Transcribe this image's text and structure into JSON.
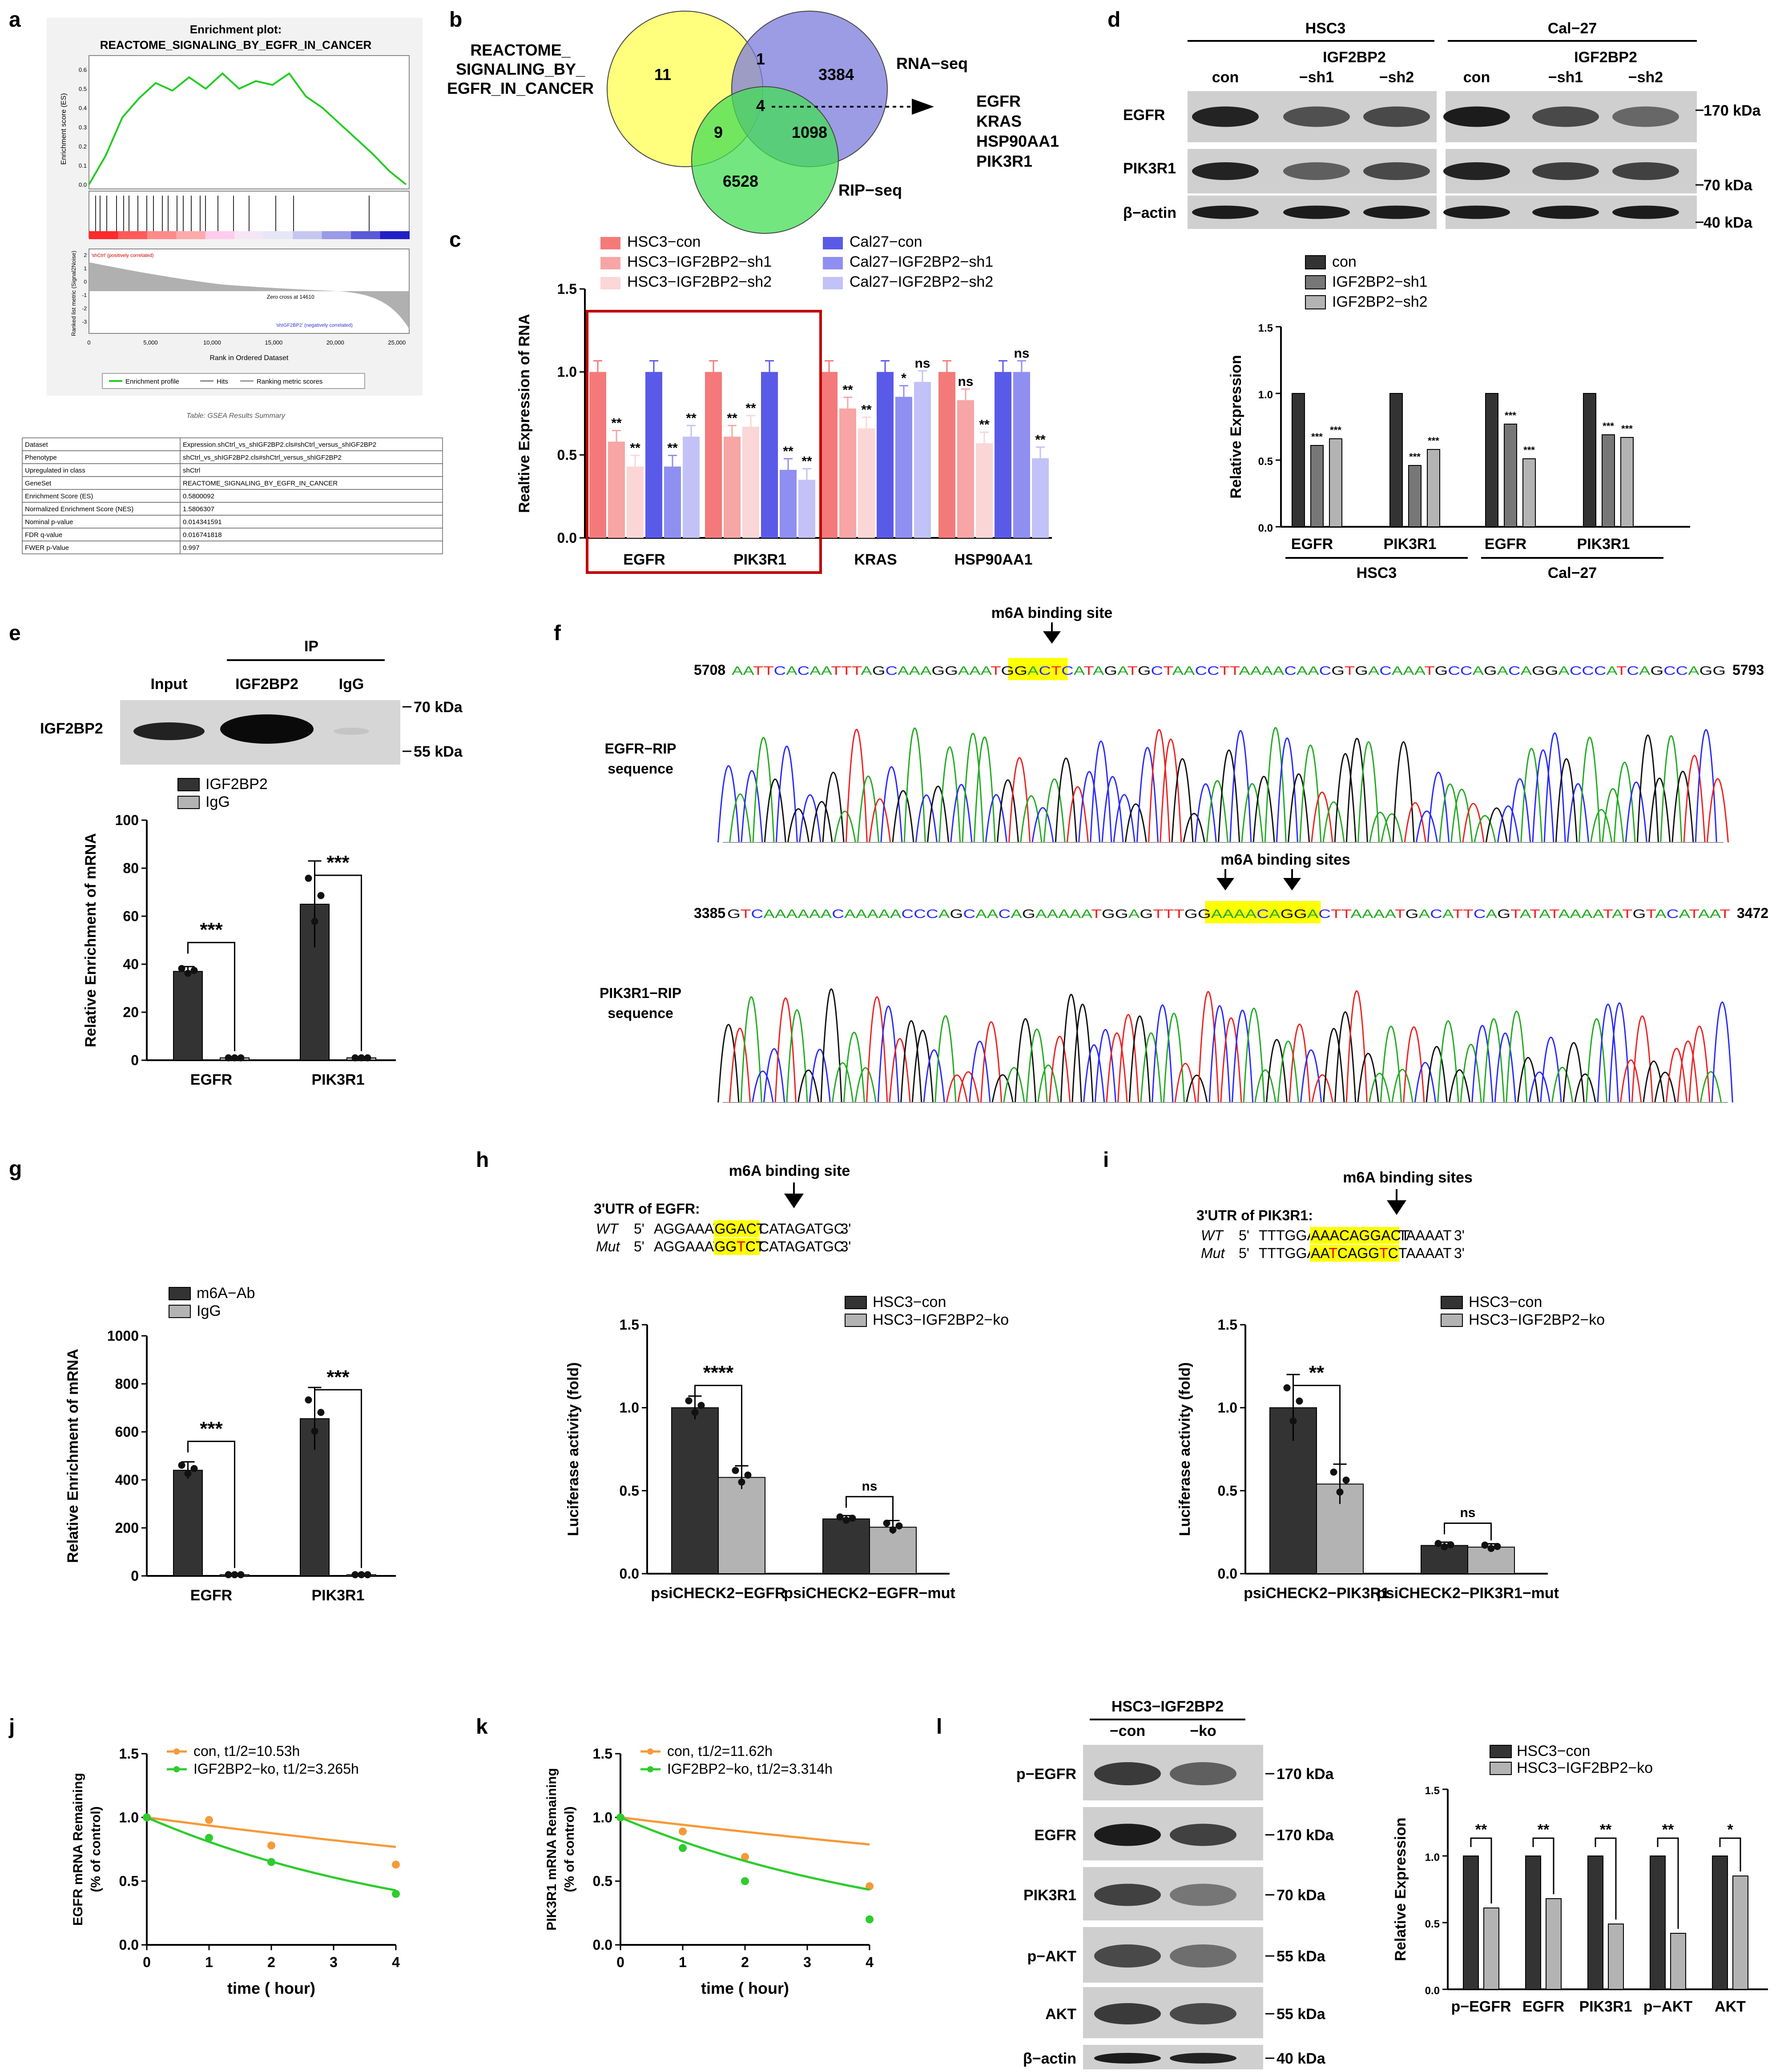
{
  "panels": {
    "a": "a",
    "b": "b",
    "c": "c",
    "d": "d",
    "e": "e",
    "f": "f",
    "g": "g",
    "h": "h",
    "i": "i",
    "j": "j",
    "k": "k",
    "l": "l"
  },
  "colors": {
    "hsc3_con": "#f47a7a",
    "hsc3_sh1": "#f7a5a5",
    "hsc3_sh2": "#fbd6d6",
    "cal_con": "#5a5ae8",
    "cal_sh1": "#8f8ff2",
    "cal_sh2": "#c2c2f8",
    "dark": "#333333",
    "mid": "#777777",
    "light": "#b3b3b3",
    "green": "#2ecc2e",
    "orange": "#f59a3a"
  },
  "panel_a": {
    "title1": "Enrichment plot:",
    "title2": "REACTOME_SIGNALING_BY_EGFR_IN_CANCER",
    "ylabel_top": "Enrichment score (ES)",
    "yticks": [
      "0.6",
      "0.5",
      "0.4",
      "0.3",
      "0.2",
      "0.1",
      "0.0"
    ],
    "es_curve": [
      0,
      0.15,
      0.35,
      0.45,
      0.53,
      0.49,
      0.56,
      0.5,
      0.58,
      0.5,
      0.54,
      0.52,
      0.58,
      0.46,
      0.4,
      0.32,
      0.24,
      0.16,
      0.07,
      0.0
    ],
    "pos_label": "'shCtrl' (positively correlated)",
    "neg_label": "'shIGF2BP2' (negatively correlated)",
    "zero_cross": "Zero cross at 14610",
    "ylabel_bottom": "Ranked list metric (Signal2Noise)",
    "metric_ticks": [
      "2",
      "1",
      "0",
      "-1",
      "-2",
      "-3"
    ],
    "xticks": [
      "0",
      "5,000",
      "10,000",
      "15,000",
      "20,000",
      "25,000"
    ],
    "xlabel": "Rank in Ordered Dataset",
    "legend": [
      "Enrichment profile",
      "Hits",
      "Ranking metric scores"
    ],
    "table_title": "Table: GSEA Results Summary",
    "table": [
      [
        "Dataset",
        "Expression.shCtrl_vs_shIGF2BP2.cls#shCtrl_versus_shIGF2BP2"
      ],
      [
        "Phenotype",
        "shCtrl_vs_shIGF2BP2.cls#shCtrl_versus_shIGF2BP2"
      ],
      [
        "Upregulated in class",
        "shCtrl"
      ],
      [
        "GeneSet",
        "REACTOME_SIGNALING_BY_EGFR_IN_CANCER"
      ],
      [
        "Enrichment Score (ES)",
        "0.5800092"
      ],
      [
        "Normalized Enrichment Score (NES)",
        "1.5806307"
      ],
      [
        "Nominal p-value",
        "0.014341591"
      ],
      [
        "FDR q-value",
        "0.016741818"
      ],
      [
        "FWER p-Value",
        "0.997"
      ]
    ]
  },
  "panel_b": {
    "set1_line1": "REACTOME_",
    "set1_line2": "SIGNALING_BY_",
    "set1_line3": "EGFR_IN_CANCER",
    "set2": "RNA−seq",
    "set3": "RIP−seq",
    "counts": {
      "only1": "11",
      "only2": "3384",
      "only3": "6528",
      "s12": "1",
      "s13": "9",
      "s23": "1098",
      "all": "4"
    },
    "genes": [
      "EGFR",
      "KRAS",
      "HSP90AA1",
      "PIK3R1"
    ]
  },
  "chart_data": [
    {
      "panel": "c",
      "type": "bar",
      "ylabel": "Realtive Expression of RNA",
      "ylim": [
        0,
        1.5
      ],
      "yticks": [
        "0.0",
        "0.5",
        "1.0",
        "1.5"
      ],
      "categories": [
        "EGFR",
        "PIK3R1",
        "KRAS",
        "HSP90AA1"
      ],
      "series": [
        {
          "name": "HSC3−con",
          "values": [
            1.0,
            1.0,
            1.0,
            1.0
          ]
        },
        {
          "name": "HSC3−IGF2BP2−sh1",
          "values": [
            0.58,
            0.61,
            0.78,
            0.83
          ]
        },
        {
          "name": "HSC3−IGF2BP2−sh2",
          "values": [
            0.43,
            0.67,
            0.66,
            0.57
          ]
        },
        {
          "name": "Cal27−con",
          "values": [
            1.0,
            1.0,
            1.0,
            1.0
          ]
        },
        {
          "name": "Cal27−IGF2BP2−sh1",
          "values": [
            0.43,
            0.41,
            0.85,
            1.0
          ]
        },
        {
          "name": "Cal27−IGF2BP2−sh2",
          "values": [
            0.61,
            0.35,
            0.94,
            0.48
          ]
        }
      ],
      "sig": [
        [
          "**",
          "**",
          "**",
          "**"
        ],
        [
          "**",
          "**",
          "**",
          "**"
        ],
        [
          "**",
          "**",
          "*",
          "ns"
        ],
        [
          "ns",
          "**",
          "ns",
          "**"
        ]
      ]
    },
    {
      "panel": "d",
      "type": "bar",
      "ylabel": "Relative Expression",
      "ylim": [
        0,
        1.5
      ],
      "yticks": [
        "0.0",
        "0.5",
        "1.0",
        "1.5"
      ],
      "categories": [
        "EGFR",
        "PIK3R1",
        "EGFR",
        "PIK3R1"
      ],
      "groups": [
        "HSC3",
        "Cal−27"
      ],
      "series": [
        {
          "name": "con",
          "values": [
            1.0,
            1.0,
            1.0,
            1.0
          ]
        },
        {
          "name": "IGF2BP2−sh1",
          "values": [
            0.61,
            0.46,
            0.77,
            0.69
          ]
        },
        {
          "name": "IGF2BP2−sh2",
          "values": [
            0.66,
            0.58,
            0.51,
            0.67
          ]
        }
      ],
      "sig": "***"
    },
    {
      "panel": "e",
      "type": "bar",
      "ylabel": "Relative Enrichment of mRNA",
      "ylim": [
        0,
        100
      ],
      "yticks": [
        "0",
        "20",
        "40",
        "60",
        "80",
        "100"
      ],
      "categories": [
        "EGFR",
        "PIK3R1"
      ],
      "series": [
        {
          "name": "IGF2BP2",
          "values": [
            37,
            65
          ]
        },
        {
          "name": "IgG",
          "values": [
            1,
            1
          ]
        }
      ],
      "sig": [
        "***",
        "***"
      ]
    },
    {
      "panel": "g",
      "type": "bar",
      "ylabel": "Relative Enrichment of mRNA",
      "ylim": [
        0,
        1000
      ],
      "yticks": [
        "0",
        "200",
        "400",
        "600",
        "800",
        "1000"
      ],
      "categories": [
        "EGFR",
        "PIK3R1"
      ],
      "series": [
        {
          "name": "m6A−Ab",
          "values": [
            440,
            655
          ]
        },
        {
          "name": "IgG",
          "values": [
            5,
            5
          ]
        }
      ],
      "sig": [
        "***",
        "***"
      ]
    },
    {
      "panel": "h",
      "type": "bar",
      "ylabel": "Luciferase activity (fold)",
      "ylim": [
        0,
        1.5
      ],
      "yticks": [
        "0.0",
        "0.5",
        "1.0",
        "1.5"
      ],
      "categories": [
        "psiCHECK2−EGFR",
        "psiCHECK2−EGFR−mut"
      ],
      "series": [
        {
          "name": "HSC3−con",
          "values": [
            1.0,
            0.33
          ]
        },
        {
          "name": "HSC3−IGF2BP2−ko",
          "values": [
            0.58,
            0.28
          ]
        }
      ],
      "sig": [
        "****",
        "ns"
      ]
    },
    {
      "panel": "i",
      "type": "bar",
      "ylabel": "Luciferase activity (fold)",
      "ylim": [
        0,
        1.5
      ],
      "yticks": [
        "0.0",
        "0.5",
        "1.0",
        "1.5"
      ],
      "categories": [
        "psiCHECK2−PIK3R1",
        "psiCHECK2−PIK3R1−mut"
      ],
      "series": [
        {
          "name": "HSC3−con",
          "values": [
            1.0,
            0.17
          ]
        },
        {
          "name": "HSC3−IGF2BP2−ko",
          "values": [
            0.54,
            0.16
          ]
        }
      ],
      "sig": [
        "**",
        "ns"
      ]
    },
    {
      "panel": "j",
      "type": "line",
      "ylabel": "EGFR mRNA Remaining (% of control)",
      "xlabel": "time ( hour)",
      "xlim": [
        0,
        4
      ],
      "ylim": [
        0,
        1.5
      ],
      "xticks": [
        "0",
        "1",
        "2",
        "3",
        "4"
      ],
      "yticks": [
        "0.0",
        "0.5",
        "1.0",
        "1.5"
      ],
      "series": [
        {
          "name": "con, t1/2=10.53h",
          "x": [
            0,
            1,
            2,
            4
          ],
          "y": [
            1.0,
            0.98,
            0.78,
            0.63
          ],
          "halflife": 10.53
        },
        {
          "name": "IGF2BP2−ko, t1/2=3.265h",
          "x": [
            0,
            1,
            2,
            4
          ],
          "y": [
            1.0,
            0.84,
            0.65,
            0.4
          ],
          "halflife": 3.265
        }
      ]
    },
    {
      "panel": "k",
      "type": "line",
      "ylabel": "PIK3R1 mRNA Remaining (% of control)",
      "xlabel": "time ( hour)",
      "xlim": [
        0,
        4
      ],
      "ylim": [
        0,
        1.5
      ],
      "xticks": [
        "0",
        "1",
        "2",
        "3",
        "4"
      ],
      "yticks": [
        "0.0",
        "0.5",
        "1.0",
        "1.5"
      ],
      "series": [
        {
          "name": "con, t1/2=11.62h",
          "x": [
            0,
            1,
            2,
            4
          ],
          "y": [
            1.0,
            0.89,
            0.69,
            0.46
          ],
          "halflife": 11.62
        },
        {
          "name": "IGF2BP2−ko, t1/2=3.314h",
          "x": [
            0,
            1,
            2,
            4
          ],
          "y": [
            1.0,
            0.76,
            0.5,
            0.2
          ],
          "halflife": 3.314
        }
      ]
    },
    {
      "panel": "l",
      "type": "bar",
      "ylabel": "Relative Expression",
      "ylim": [
        0,
        1.5
      ],
      "yticks": [
        "0.0",
        "0.5",
        "1.0",
        "1.5"
      ],
      "categories": [
        "p−EGFR",
        "EGFR",
        "PIK3R1",
        "p−AKT",
        "AKT"
      ],
      "series": [
        {
          "name": "HSC3−con",
          "values": [
            1.0,
            1.0,
            1.0,
            1.0,
            1.0
          ]
        },
        {
          "name": "HSC3−IGF2BP2−ko",
          "values": [
            0.61,
            0.68,
            0.49,
            0.42,
            0.85
          ]
        }
      ],
      "sig": [
        "**",
        "**",
        "**",
        "**",
        "*"
      ]
    }
  ],
  "panel_d_blot": {
    "cell1": "HSC3",
    "cell2": "Cal−27",
    "lanes": [
      "con",
      "IGF2BP2",
      "−sh1",
      "−sh2"
    ],
    "rows": [
      "EGFR",
      "PIK3R1",
      "β−actin"
    ],
    "kda": [
      "170 kDa",
      "70 kDa",
      "40 kDa"
    ]
  },
  "panel_e_blot": {
    "ip": "IP",
    "lanes": [
      "Input",
      "IGF2BP2",
      "IgG"
    ],
    "row": "IGF2BP2",
    "kda": [
      "70 kDa",
      "55 kDa"
    ]
  },
  "panel_f": {
    "site1": "m6A binding site",
    "site2": "m6A binding sites",
    "seq1_start": "5708",
    "seq1_end": "5793",
    "seq1": "AATTCACAATTTAGCAAAGGAAATGGACTCATAGATGCTAACCTTAAAACAACGTGACAAATGCCAGACAGGACCCATCAGCCAGG",
    "seq2_start": "3385",
    "seq2_end": "3472",
    "seq2": "GTCAAAAAACAAAAACCCAGCAACAGAAAAATGGAGTTTGGAAAACAGGACTTAAAATGACATTCAGTATATAAAATATGTACATAAT",
    "label1a": "EGFR−RIP",
    "label1b": "sequence",
    "label2a": "PIK3R1−RIP",
    "label2b": "sequence"
  },
  "panel_h_seq": {
    "site": "m6A binding site",
    "utr": "3'UTR of EGFR:",
    "wt": "WT",
    "mut": "Mut",
    "five": "5'",
    "three": "3'",
    "wt_pre": "AGGAAAT",
    "wt_core": "GGACT",
    "wt_post": "CATAGATGC",
    "mut_pre": "AGGAAAT",
    "mut_core": "GGTCT",
    "mut_post": "CATAGATGC"
  },
  "panel_i_seq": {
    "site": "m6A binding sites",
    "utr": "3'UTR of PIK3R1:",
    "wt": "WT",
    "mut": "Mut",
    "five": "5'",
    "three": "3'",
    "wt_pre": "TTTGGA",
    "wt_core": "AAACAGGACT",
    "wt_post": "TAAAAT",
    "mut_pre": "TTTGGA",
    "mut_core": "AATCAGGTCT",
    "mut_post": "TAAAAT"
  },
  "panel_l_blot": {
    "title1": "HSC3−IGF2BP2",
    "lanes": [
      "−con",
      "−ko"
    ],
    "rows": [
      "p−EGFR",
      "EGFR",
      "PIK3R1",
      "p−AKT",
      "AKT",
      "β−actin"
    ],
    "kda": [
      "170 kDa",
      "170 kDa",
      "70 kDa",
      "55 kDa",
      "55 kDa",
      "40 kDa"
    ]
  }
}
